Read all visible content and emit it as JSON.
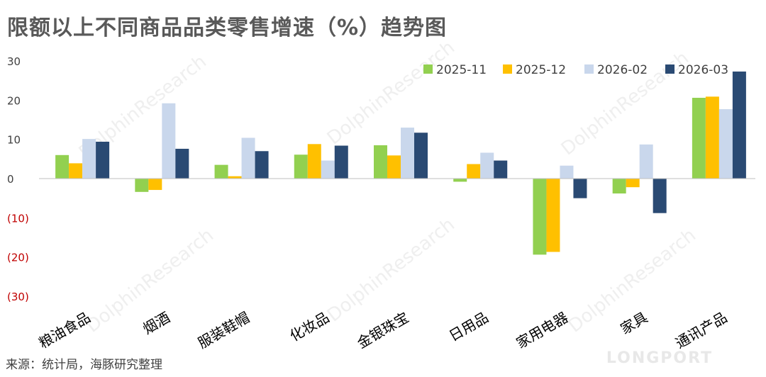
{
  "chart_data": {
    "type": "bar",
    "title": "限额以上不同商品品类零售增速（%）趋势图",
    "categories": [
      "粮油食品",
      "烟酒",
      "服装鞋帽",
      "化妆品",
      "金银珠宝",
      "日用品",
      "家用电器",
      "家具",
      "通讯产品"
    ],
    "series": [
      {
        "name": "2025-11",
        "color": "#92D050",
        "values": [
          6.0,
          -3.4,
          3.5,
          6.1,
          8.5,
          -0.8,
          -19.4,
          -3.8,
          20.6
        ]
      },
      {
        "name": "2025-12",
        "color": "#FFC000",
        "values": [
          3.9,
          -2.9,
          0.6,
          8.8,
          5.9,
          3.7,
          -18.7,
          -2.2,
          20.9
        ]
      },
      {
        "name": "2026-02",
        "color": "#C9D7EC",
        "values": [
          10.1,
          19.2,
          10.4,
          4.6,
          13.0,
          6.6,
          3.3,
          8.7,
          17.7
        ]
      },
      {
        "name": "2026-03",
        "color": "#2A4A73",
        "values": [
          9.4,
          7.6,
          7.0,
          8.4,
          11.7,
          4.6,
          -5.0,
          -8.8,
          27.3
        ]
      }
    ],
    "ylim": [
      -30,
      30
    ],
    "yticks": [
      {
        "value": 30,
        "label": "30"
      },
      {
        "value": 20,
        "label": "20"
      },
      {
        "value": 10,
        "label": "10"
      },
      {
        "value": 0,
        "label": "0"
      },
      {
        "value": -10,
        "label": "(10)"
      },
      {
        "value": -20,
        "label": "(20)"
      },
      {
        "value": -30,
        "label": "(30)"
      }
    ],
    "negative_tick_color": "#C00000",
    "grid": false,
    "legend_position": "top-right",
    "source": "来源：统计局，海豚研究整理",
    "watermarks": [
      "DolphinResearch",
      "LONGPORT"
    ]
  }
}
